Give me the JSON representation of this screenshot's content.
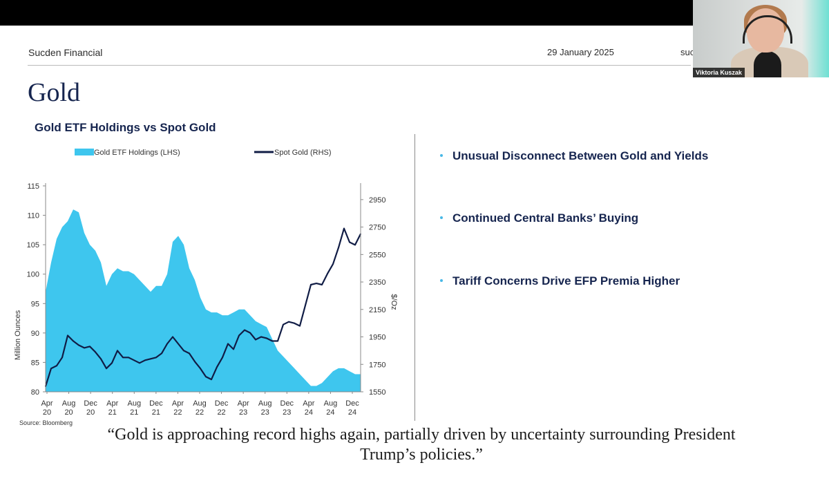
{
  "slide": {
    "company": "Sucden Financial",
    "date": "29 January 2025",
    "header_right_truncated": "suc",
    "title": "Gold",
    "chart_heading": "Gold ETF Holdings vs Spot Gold",
    "bullets": [
      "Unusual Disconnect Between Gold and Yields",
      "Continued Central Banks’ Buying",
      "Tariff Concerns Drive EFP Premia Higher"
    ],
    "quote_line1": "“Gold is approaching record highs again, partially driven by uncertainty surrounding President",
    "quote_line2": "Trump’s policies.”",
    "source": "Source: Bloomberg"
  },
  "webcam": {
    "participant_name": "Viktoria Kuszak"
  },
  "colors": {
    "etf_fill": "#3ec6ee",
    "gold_line": "#101c45",
    "title_navy": "#16254f",
    "bullet_dot": "#48b8e6"
  },
  "chart_data": {
    "type": "area",
    "title": "",
    "legend_placement": "top",
    "grid": false,
    "x_tick_labels": [
      {
        "month": "Apr",
        "year": "20"
      },
      {
        "month": "Aug",
        "year": "20"
      },
      {
        "month": "Dec",
        "year": "20"
      },
      {
        "month": "Apr",
        "year": "21"
      },
      {
        "month": "Aug",
        "year": "21"
      },
      {
        "month": "Dec",
        "year": "21"
      },
      {
        "month": "Apr",
        "year": "22"
      },
      {
        "month": "Aug",
        "year": "22"
      },
      {
        "month": "Dec",
        "year": "22"
      },
      {
        "month": "Apr",
        "year": "23"
      },
      {
        "month": "Aug",
        "year": "23"
      },
      {
        "month": "Dec",
        "year": "23"
      },
      {
        "month": "Apr",
        "year": "24"
      },
      {
        "month": "Aug",
        "year": "24"
      },
      {
        "month": "Dec",
        "year": "24"
      }
    ],
    "x": [
      "2020-04",
      "2020-05",
      "2020-06",
      "2020-07",
      "2020-08",
      "2020-09",
      "2020-10",
      "2020-11",
      "2020-12",
      "2021-01",
      "2021-02",
      "2021-03",
      "2021-04",
      "2021-05",
      "2021-06",
      "2021-07",
      "2021-08",
      "2021-09",
      "2021-10",
      "2021-11",
      "2021-12",
      "2022-01",
      "2022-02",
      "2022-03",
      "2022-04",
      "2022-05",
      "2022-06",
      "2022-07",
      "2022-08",
      "2022-09",
      "2022-10",
      "2022-11",
      "2022-12",
      "2023-01",
      "2023-02",
      "2023-03",
      "2023-04",
      "2023-05",
      "2023-06",
      "2023-07",
      "2023-08",
      "2023-09",
      "2023-10",
      "2023-11",
      "2023-12",
      "2024-01",
      "2024-02",
      "2024-03",
      "2024-04",
      "2024-05",
      "2024-06",
      "2024-07",
      "2024-08",
      "2024-09",
      "2024-10",
      "2024-11",
      "2024-12",
      "2025-01"
    ],
    "series": [
      {
        "name": "Gold ETF Holdings (LHS)",
        "axis": "left",
        "values": [
          97,
          102,
          106,
          108,
          109,
          111,
          110.5,
          107,
          105,
          104,
          102,
          98,
          100,
          101,
          100.5,
          100.5,
          100,
          99,
          98,
          97,
          98,
          98,
          100,
          105.5,
          106.5,
          105,
          101,
          99,
          96,
          94,
          93.5,
          93.5,
          93,
          93,
          93.5,
          94,
          94,
          93,
          92,
          91.5,
          91,
          89,
          87,
          86,
          85,
          84,
          83,
          82,
          81,
          81,
          81.5,
          82.5,
          83.5,
          84,
          84,
          83.5,
          83,
          83
        ]
      },
      {
        "name": "Spot Gold (RHS)",
        "axis": "right",
        "values": [
          1590,
          1720,
          1740,
          1800,
          1960,
          1920,
          1890,
          1870,
          1880,
          1840,
          1790,
          1720,
          1760,
          1850,
          1800,
          1800,
          1780,
          1760,
          1780,
          1790,
          1800,
          1830,
          1900,
          1950,
          1900,
          1850,
          1830,
          1770,
          1720,
          1660,
          1640,
          1730,
          1800,
          1900,
          1860,
          1960,
          2000,
          1980,
          1930,
          1950,
          1940,
          1920,
          1920,
          2040,
          2060,
          2050,
          2030,
          2180,
          2330,
          2340,
          2330,
          2410,
          2480,
          2600,
          2740,
          2640,
          2620,
          2700
        ]
      }
    ],
    "ylabel": "Million Ounces",
    "ylabel_right": "$/Oz",
    "ylim": [
      80,
      115
    ],
    "ylim_right": [
      1550,
      3050
    ],
    "yticks": [
      80,
      85,
      90,
      95,
      100,
      105,
      110,
      115
    ],
    "yticks_right": [
      1550,
      1750,
      1950,
      2150,
      2350,
      2550,
      2750,
      2950
    ]
  }
}
